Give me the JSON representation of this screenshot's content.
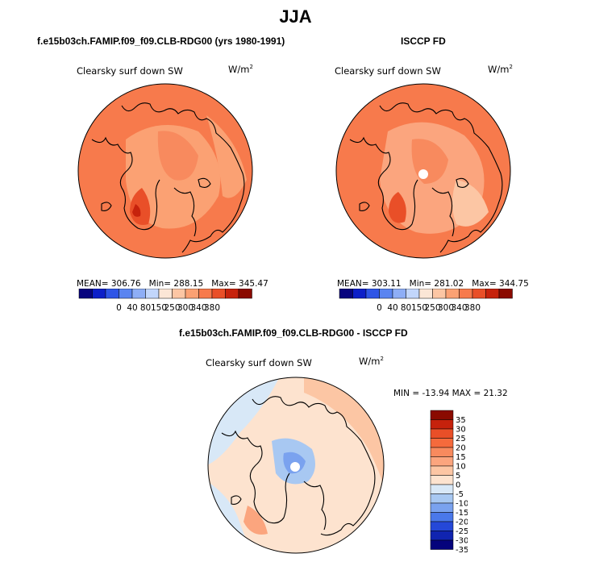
{
  "figure": {
    "title": "JJA",
    "left_panel_title": "f.e15b03ch.FAMIP.f09_f09.CLB-RDG00 (yrs 1980-1991)",
    "right_panel_title": "ISCCP FD",
    "diff_panel_title": "f.e15b03ch.FAMIP.f09_f09.CLB-RDG00 - ISCCP FD"
  },
  "chart_data": [
    {
      "type": "map",
      "title": "Clearsky surf down SW",
      "units_base": "W/m",
      "units_exp": "2",
      "stats": {
        "mean_label": "MEAN=",
        "mean": "306.76",
        "min_label": "Min=",
        "min": "288.15",
        "max_label": "Max=",
        "max": "345.47"
      },
      "colorbar": {
        "levels": [
          "0",
          "40",
          "80",
          "150",
          "250",
          "300",
          "340",
          "380"
        ],
        "colors": [
          "#08047e",
          "#0c1fc8",
          "#2e55e6",
          "#5a84f0",
          "#8eaef6",
          "#c2d6fb",
          "#fbe6d6",
          "#fcc6a4",
          "#fba173",
          "#f77a4c",
          "#e94f28",
          "#c6220c",
          "#8a0a00"
        ]
      }
    },
    {
      "type": "map",
      "title": "Clearsky surf down SW",
      "units_base": "W/m",
      "units_exp": "2",
      "stats": {
        "mean_label": "MEAN=",
        "mean": "303.11",
        "min_label": "Min=",
        "min": "281.02",
        "max_label": "Max=",
        "max": "344.75"
      },
      "colorbar": {
        "levels": [
          "0",
          "40",
          "80",
          "150",
          "250",
          "300",
          "340",
          "380"
        ],
        "colors": [
          "#08047e",
          "#0c1fc8",
          "#2e55e6",
          "#5a84f0",
          "#8eaef6",
          "#c2d6fb",
          "#fbe6d6",
          "#fcc6a4",
          "#fba173",
          "#f77a4c",
          "#e94f28",
          "#c6220c",
          "#8a0a00"
        ]
      }
    },
    {
      "type": "map",
      "title": "Clearsky surf down SW",
      "units_base": "W/m",
      "units_exp": "2",
      "stats_text": "MIN = -13.94  MAX =  21.32",
      "colorbar": {
        "levels": [
          "35",
          "30",
          "25",
          "20",
          "15",
          "10",
          "5",
          "0",
          "-5",
          "-10",
          "-15",
          "-20",
          "-25",
          "-30",
          "-35"
        ],
        "colors": [
          "#8a0a00",
          "#c6220c",
          "#e94f28",
          "#f56a3c",
          "#f88a5e",
          "#fba57e",
          "#fcc6a4",
          "#fde3cf",
          "#d8e8f7",
          "#a8c8f2",
          "#7aa2ef",
          "#4a78ea",
          "#2548d8",
          "#1024b0",
          "#05037c"
        ]
      }
    }
  ]
}
